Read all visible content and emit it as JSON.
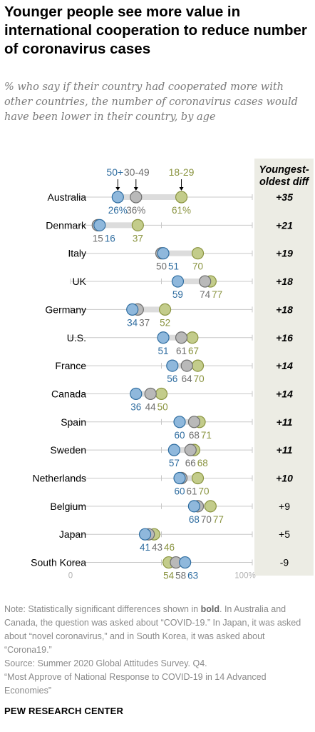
{
  "header": {
    "title": "Younger people see more value in international cooperation to reduce number of coronavirus cases",
    "subtitle": "% who say if their country had cooperated more with other countries, the number of coronavirus cases would have been lower in their country, by age"
  },
  "diff_header": "Youngest-oldest diff",
  "colors": {
    "age_50plus": "#8fb8dc",
    "age_50plus_stroke": "#2f6da0",
    "age_30_49": "#b9b9b9",
    "age_30_49_stroke": "#6e6e6e",
    "age_18_29": "#c3cc8b",
    "age_18_29_stroke": "#8a9440",
    "label_50plus": "#2f6da0",
    "label_30_49": "#6e6e6e",
    "label_18_29": "#8a9440",
    "range_bar": "#dcdcdc",
    "axis_line": "#c8c8c8",
    "diff_box": "#ecece4"
  },
  "chart_data": {
    "type": "dot",
    "x_range": [
      0,
      100
    ],
    "axis_ticks": [
      "0",
      "100%"
    ],
    "series": [
      {
        "name": "50+",
        "key": "a50"
      },
      {
        "name": "30-49",
        "key": "a30"
      },
      {
        "name": "18-29",
        "key": "a18"
      }
    ],
    "rows": [
      {
        "country": "Australia",
        "a50": 26,
        "a30": 36,
        "a18": 61,
        "diff": "+35",
        "bold": true,
        "pct": true
      },
      {
        "country": "Denmark",
        "a50": 16,
        "a30": 15,
        "a18": 37,
        "diff": "+21",
        "bold": true
      },
      {
        "country": "Italy",
        "a50": 51,
        "a30": 50,
        "a18": 70,
        "diff": "+19",
        "bold": true
      },
      {
        "country": "UK",
        "a50": 59,
        "a30": 74,
        "a18": 77,
        "diff": "+18",
        "bold": true
      },
      {
        "country": "Germany",
        "a50": 34,
        "a30": 37,
        "a18": 52,
        "diff": "+18",
        "bold": true
      },
      {
        "country": "U.S.",
        "a50": 51,
        "a30": 61,
        "a18": 67,
        "diff": "+16",
        "bold": true
      },
      {
        "country": "France",
        "a50": 56,
        "a30": 64,
        "a18": 70,
        "diff": "+14",
        "bold": true
      },
      {
        "country": "Canada",
        "a50": 36,
        "a30": 44,
        "a18": 50,
        "diff": "+14",
        "bold": true
      },
      {
        "country": "Spain",
        "a50": 60,
        "a30": 68,
        "a18": 71,
        "diff": "+11",
        "bold": true
      },
      {
        "country": "Sweden",
        "a50": 57,
        "a30": 66,
        "a18": 68,
        "diff": "+11",
        "bold": true
      },
      {
        "country": "Netherlands",
        "a50": 60,
        "a30": 61,
        "a18": 70,
        "diff": "+10",
        "bold": true
      },
      {
        "country": "Belgium",
        "a50": 68,
        "a30": 70,
        "a18": 77,
        "diff": "+9",
        "bold": false
      },
      {
        "country": "Japan",
        "a50": 41,
        "a30": 43,
        "a18": 46,
        "diff": "+5",
        "bold": false
      },
      {
        "country": "South Korea",
        "a50": 63,
        "a30": 58,
        "a18": 54,
        "diff": "-9",
        "bold": false
      }
    ]
  },
  "notes": {
    "line1_a": "Note: Statistically significant differences shown in ",
    "line1_bold": "bold",
    "line1_b": ". In Australia and Canada, the question was asked about “COVID-19.” In Japan, it was asked about “novel coronavirus,” and in South Korea, it was asked about “Corona19.”",
    "source": "Source: Summer 2020 Global Attitudes Survey. Q4.",
    "report": "“Most Approve of National Response to COVID-19 in 14 Advanced Economies”"
  },
  "logo": "PEW RESEARCH CENTER"
}
